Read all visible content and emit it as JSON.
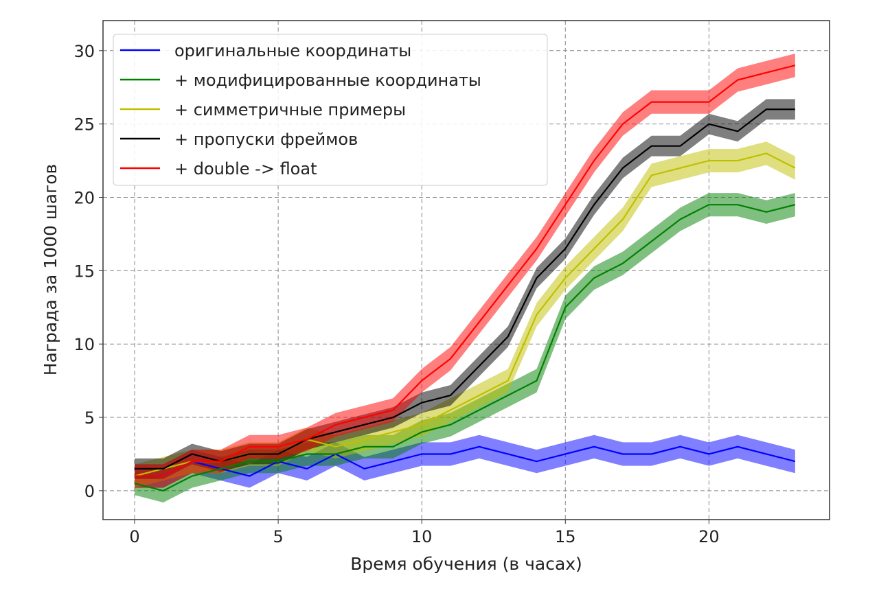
{
  "chart_data": {
    "type": "line",
    "title": "",
    "xlabel": "Время обучения (в часах)",
    "ylabel": "Награда за 1000 шагов",
    "xlim": [
      -1.1,
      24.2
    ],
    "ylim": [
      -1.97,
      32.05
    ],
    "xticks": [
      0,
      5,
      10,
      15,
      20
    ],
    "yticks": [
      0,
      5,
      10,
      15,
      20,
      25,
      30
    ],
    "grid": true,
    "legend_position": "top-left",
    "x": [
      0,
      1,
      2,
      3,
      4,
      5,
      6,
      7,
      8,
      9,
      10,
      11,
      12,
      13,
      14,
      15,
      16,
      17,
      18,
      19,
      20,
      21,
      22,
      23
    ],
    "series": [
      {
        "name": "оригинальные координаты",
        "color": "#0000ff",
        "band": 0.8,
        "values": [
          1,
          1,
          2,
          1.5,
          1,
          2,
          1.5,
          2.5,
          1.5,
          2,
          2.5,
          2.5,
          3,
          2.5,
          2,
          2.5,
          3,
          2.5,
          2.5,
          3,
          2.5,
          3,
          2.5,
          2
        ]
      },
      {
        "name": "+ модифицированные координаты",
        "color": "#008000",
        "band": 0.8,
        "values": [
          0.5,
          0,
          1,
          1.5,
          2,
          2,
          2.5,
          2.5,
          3,
          3,
          4,
          4.5,
          5.5,
          6.5,
          7.5,
          12.5,
          14.5,
          15.5,
          17,
          18.5,
          19.5,
          19.5,
          19,
          19.5
        ]
      },
      {
        "name": "+ симметричные примеры",
        "color": "#bfbf00",
        "band": 0.8,
        "values": [
          1,
          1.5,
          2,
          2,
          2.5,
          2.5,
          3.5,
          3,
          3.5,
          4,
          4.5,
          5.5,
          6.5,
          7.5,
          12,
          14.5,
          16.5,
          18.5,
          21.5,
          22,
          22.5,
          22.5,
          23,
          22
        ]
      },
      {
        "name": "+ пропуски фреймов",
        "color": "#000000",
        "band": 0.7,
        "values": [
          1.5,
          1.5,
          2.5,
          2,
          2.5,
          2.5,
          3.5,
          4,
          4.5,
          5,
          6,
          6.5,
          8.5,
          10.5,
          14.5,
          16.5,
          19.5,
          22,
          23.5,
          23.5,
          25,
          24.5,
          26,
          26
        ]
      },
      {
        "name": "+ double -> float",
        "color": "#ff0000",
        "band": 0.8,
        "values": [
          1,
          1,
          2,
          2,
          3,
          3,
          3.5,
          4.5,
          5,
          5.5,
          7.5,
          9,
          11.5,
          14,
          16.5,
          19.5,
          22.5,
          25,
          26.5,
          26.5,
          26.5,
          28,
          28.5,
          29
        ]
      }
    ]
  }
}
